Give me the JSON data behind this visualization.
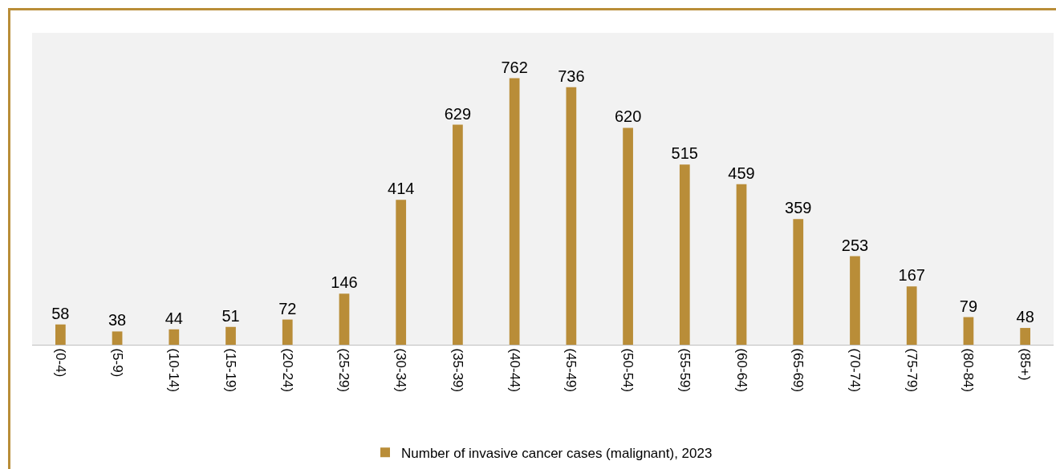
{
  "chart_data": {
    "type": "bar",
    "categories": [
      "(0-4)",
      "(5-9)",
      "(10-14)",
      "(15-19)",
      "(20-24)",
      "(25-29)",
      "(30-34)",
      "(35-39)",
      "(40-44)",
      "(45-49)",
      "(50-54)",
      "(55-59)",
      "(60-64)",
      "(65-69)",
      "(70-74)",
      "(75-79)",
      "(80-84)",
      "(85+)"
    ],
    "series": [
      {
        "name": "Number of invasive cancer cases (malignant), 2023",
        "color": "#b98d38",
        "values": [
          58,
          38,
          44,
          51,
          72,
          146,
          414,
          629,
          762,
          736,
          620,
          515,
          459,
          359,
          253,
          167,
          79,
          48
        ]
      }
    ],
    "data_labels": true,
    "grid": false,
    "legend": "bottom"
  }
}
